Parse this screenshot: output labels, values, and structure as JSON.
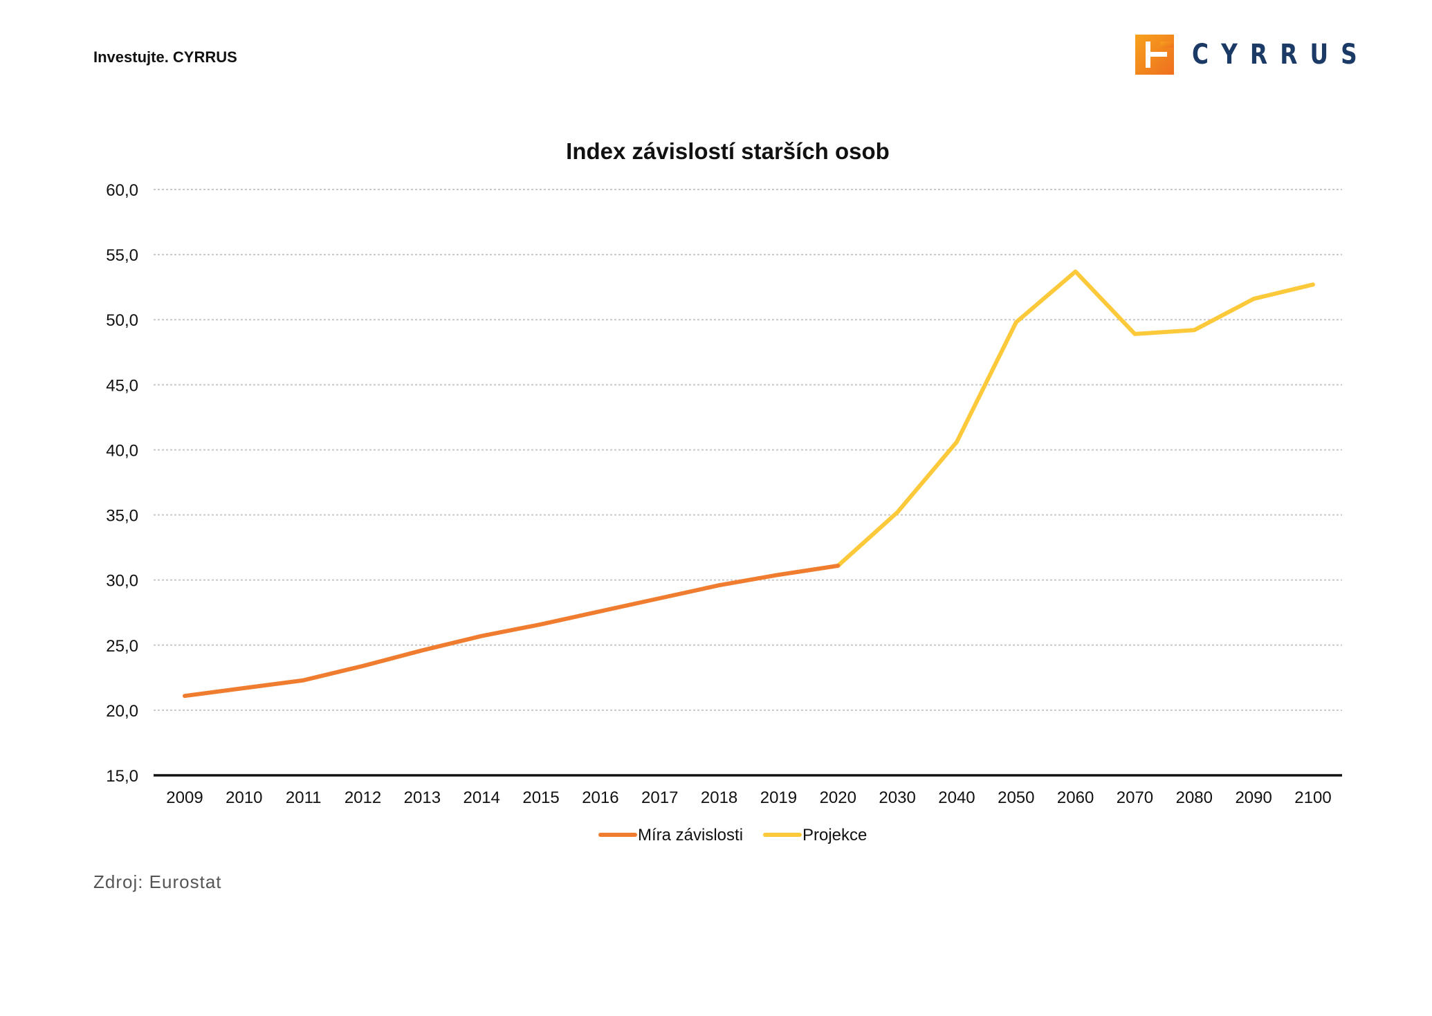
{
  "header": {
    "tagline": "Investujte. CYRRUS",
    "logo_text": "CYRRUS"
  },
  "colors": {
    "series_history": "#f07d2f",
    "series_projection": "#fcc93a",
    "logo_orange": "#f07d22",
    "logo_navy": "#1c3a66",
    "grid": "#c8c8c8",
    "axis": "#111111"
  },
  "chart_data": {
    "type": "line",
    "title": "Index závislostí starších osob",
    "xlabel": "",
    "ylabel": "",
    "ylim": [
      15,
      60
    ],
    "y_ticks": [
      "60,0",
      "55,0",
      "50,0",
      "45,0",
      "40,0",
      "35,0",
      "30,0",
      "25,0",
      "20,0",
      "15,0"
    ],
    "grid": true,
    "legend_position": "bottom",
    "categories": [
      "2009",
      "2010",
      "2011",
      "2012",
      "2013",
      "2014",
      "2015",
      "2016",
      "2017",
      "2018",
      "2019",
      "2020",
      "2030",
      "2040",
      "2050",
      "2060",
      "2070",
      "2080",
      "2090",
      "2100"
    ],
    "series": [
      {
        "name": "Míra závislosti",
        "color": "#f07d2f",
        "values": [
          21.1,
          21.7,
          22.3,
          23.4,
          24.6,
          25.7,
          26.6,
          27.6,
          28.6,
          29.6,
          30.4,
          31.1,
          null,
          null,
          null,
          null,
          null,
          null,
          null,
          null
        ]
      },
      {
        "name": "Projekce",
        "color": "#fcc93a",
        "values": [
          null,
          null,
          null,
          null,
          null,
          null,
          null,
          null,
          null,
          null,
          null,
          31.1,
          35.2,
          40.6,
          49.8,
          53.7,
          48.9,
          49.2,
          51.6,
          52.7
        ]
      }
    ]
  },
  "footer": {
    "source": "Zdroj: Eurostat"
  }
}
